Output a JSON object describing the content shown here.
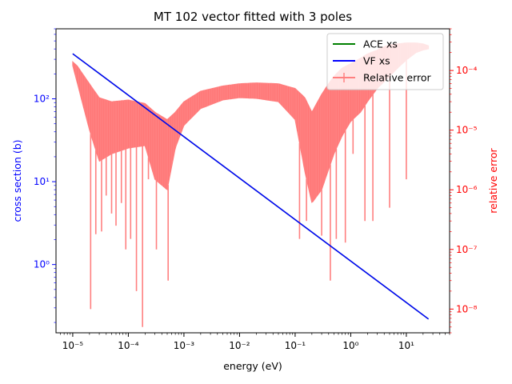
{
  "chart_data": {
    "type": "line",
    "title": "MT 102 vector fitted with 3 poles",
    "xlabel": "energy (eV)",
    "ylabel_left": "cross section (b)",
    "ylabel_right": "relative error",
    "xscale": "log",
    "yscale_left": "log",
    "yscale_right": "log",
    "xlim": [
      5e-06,
      60
    ],
    "ylim_left": [
      0.15,
      700
    ],
    "ylim_right": [
      4e-09,
      0.0005
    ],
    "x_ticks": [
      {
        "value": 1e-05,
        "label": "10⁻⁵"
      },
      {
        "value": 0.0001,
        "label": "10⁻⁴"
      },
      {
        "value": 0.001,
        "label": "10⁻³"
      },
      {
        "value": 0.01,
        "label": "10⁻²"
      },
      {
        "value": 0.1,
        "label": "10⁻¹"
      },
      {
        "value": 1,
        "label": "10⁰"
      },
      {
        "value": 10,
        "label": "10¹"
      }
    ],
    "y_left_ticks": [
      {
        "value": 1,
        "label": "10⁰"
      },
      {
        "value": 10,
        "label": "10¹"
      },
      {
        "value": 100,
        "label": "10²"
      }
    ],
    "y_right_ticks": [
      {
        "value": 1e-08,
        "label": "10⁻⁸"
      },
      {
        "value": 1e-07,
        "label": "10⁻⁷"
      },
      {
        "value": 1e-06,
        "label": "10⁻⁶"
      },
      {
        "value": 1e-05,
        "label": "10⁻⁵"
      },
      {
        "value": 0.0001,
        "label": "10⁻⁴"
      }
    ],
    "legend": {
      "position": "top-right",
      "entries": [
        {
          "label": "ACE xs",
          "color": "#008000"
        },
        {
          "label": "VF xs",
          "color": "#0000ff"
        },
        {
          "label": "Relative error",
          "color": "#ff8080"
        }
      ]
    },
    "series": [
      {
        "name": "ACE xs",
        "axis": "left",
        "color": "#008000",
        "x": [
          1e-05,
          25
        ],
        "y": [
          350,
          0.22
        ]
      },
      {
        "name": "VF xs",
        "axis": "left",
        "color": "#0000ff",
        "x": [
          1e-05,
          25
        ],
        "y": [
          350,
          0.22
        ]
      },
      {
        "name": "Relative error",
        "axis": "right",
        "color": "#ff8080",
        "envelope_upper": {
          "x": [
            1e-05,
            1.2e-05,
            2e-05,
            3e-05,
            5e-05,
            0.0001,
            0.0002,
            0.0003,
            0.0005,
            0.0007,
            0.001,
            0.002,
            0.005,
            0.01,
            0.02,
            0.05,
            0.1,
            0.15,
            0.2,
            0.3,
            0.4,
            0.5,
            0.7,
            1,
            1.5,
            2,
            3,
            4,
            5,
            7,
            10,
            15,
            20,
            25
          ],
          "y": [
            0.00014,
            0.00012,
            6e-05,
            3.5e-05,
            3e-05,
            3.2e-05,
            2.8e-05,
            2e-05,
            1.5e-05,
            2e-05,
            3e-05,
            4.5e-05,
            5.5e-05,
            6e-05,
            6.2e-05,
            6e-05,
            5e-05,
            3.5e-05,
            2e-05,
            4e-05,
            6e-05,
            8e-05,
            0.00011,
            0.00013,
            0.00016,
            0.00019,
            0.00022,
            0.00025,
            0.00027,
            0.00028,
            0.00029,
            0.00029,
            0.00028,
            0.00026
          ]
        },
        "envelope_lower": {
          "x": [
            1e-05,
            2e-05,
            3e-05,
            5e-05,
            0.0001,
            0.0002,
            0.0003,
            0.0005,
            0.0007,
            0.001,
            0.002,
            0.005,
            0.01,
            0.02,
            0.05,
            0.1,
            0.15,
            0.2,
            0.3,
            0.5,
            0.7,
            1,
            1.5,
            2,
            3,
            5,
            7,
            10,
            15,
            20,
            25
          ],
          "y": [
            0.00012,
            1e-05,
            3e-06,
            4e-06,
            5e-06,
            5.5e-06,
            1.5e-06,
            1e-06,
            5e-06,
            1.2e-05,
            2.3e-05,
            3.2e-05,
            3.5e-05,
            3.4e-05,
            3e-05,
            1.5e-05,
            2e-06,
            6e-07,
            1e-06,
            4e-06,
            8e-06,
            1.4e-05,
            2e-05,
            3e-05,
            5e-05,
            8e-05,
            0.00011,
            0.00015,
            0.0002,
            0.00022,
            0.00023
          ]
        },
        "dips": {
          "x": [
            2.1e-05,
            2.6e-05,
            3.3e-05,
            4e-05,
            5e-05,
            6e-05,
            7.5e-05,
            9e-05,
            0.00011,
            0.00014,
            0.00018,
            0.00023,
            0.00032,
            0.00052,
            0.12,
            0.16,
            0.22,
            0.3,
            0.43,
            0.55,
            0.8,
            1.1,
            1.8,
            2.5,
            5,
            10
          ],
          "y": [
            1e-08,
            1.8e-07,
            2e-07,
            8e-07,
            4e-07,
            2.5e-07,
            6e-07,
            1e-07,
            1.5e-07,
            2e-08,
            5e-09,
            1.5e-06,
            1e-07,
            3e-08,
            1.5e-07,
            3e-07,
            1e-06,
            1.7e-07,
            3e-08,
            1.5e-07,
            1.3e-07,
            4e-06,
            3e-07,
            3e-07,
            5e-07,
            1.5e-06
          ]
        }
      }
    ]
  }
}
